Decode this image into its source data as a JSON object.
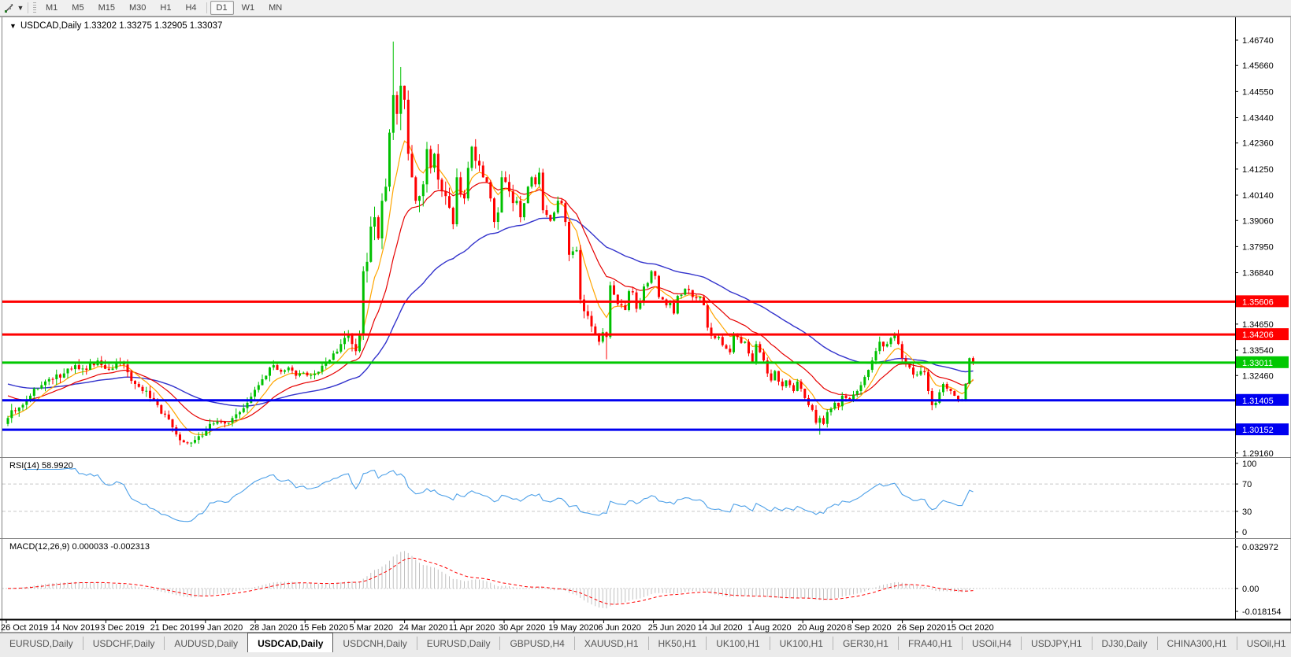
{
  "toolbar": {
    "tool_icon": "crosshair-cursor",
    "dropdown_icon": "chevron-down",
    "timeframes": [
      "M1",
      "M5",
      "M15",
      "M30",
      "H1",
      "H4",
      "D1",
      "W1",
      "MN"
    ],
    "active_timeframe": "D1"
  },
  "chart": {
    "title": "USDCAD,Daily",
    "quote": {
      "open": "1.33202",
      "high": "1.33275",
      "low": "1.32905",
      "close": "1.33037"
    }
  },
  "indicators": {
    "rsi": {
      "label": "RSI(14)",
      "value": "58.9920",
      "levels": [
        70,
        30
      ],
      "axis_labels": [
        "100",
        "70",
        "30",
        "0"
      ],
      "axis_values": [
        100,
        70,
        30,
        0
      ],
      "line_color": "#4da0e8"
    },
    "macd": {
      "label": "MACD(12,26,9)",
      "value": "0.000033 -0.002313",
      "axis_labels": [
        "0.032972",
        "0.00",
        "-0.018154"
      ],
      "axis_values": [
        0.032972,
        0,
        -0.018154
      ],
      "hist_color": "#c0c0c0",
      "signal_color": "#ff0000"
    }
  },
  "price_axis": {
    "ticks": [
      "1.46740",
      "1.45660",
      "1.44550",
      "1.43440",
      "1.42360",
      "1.41250",
      "1.40140",
      "1.39060",
      "1.37950",
      "1.36840",
      "1.34650",
      "1.33540",
      "1.32460",
      "1.29160"
    ]
  },
  "time_axis": {
    "dates": [
      "26 Oct 2019",
      "14 Nov 2019",
      "3 Dec 2019",
      "21 Dec 2019",
      "9 Jan 2020",
      "28 Jan 2020",
      "15 Feb 2020",
      "5 Mar 2020",
      "24 Mar 2020",
      "11 Apr 2020",
      "30 Apr 2020",
      "19 May 2020",
      "6 Jun 2020",
      "25 Jun 2020",
      "14 Jul 2020",
      "1 Aug 2020",
      "20 Aug 2020",
      "8 Sep 2020",
      "26 Sep 2020",
      "15 Oct 2020"
    ]
  },
  "tabs": {
    "items": [
      "EURUSD,Daily",
      "USDCHF,Daily",
      "AUDUSD,Daily",
      "USDCAD,Daily",
      "USDCNH,Daily",
      "EURUSD,Daily",
      "GBPUSD,H4",
      "XAUUSD,H1",
      "HK50,H1",
      "UK100,H1",
      "UK100,H1",
      "GER30,H1",
      "FRA40,H1",
      "USOil,H4",
      "USDJPY,H1",
      "DJ30,Daily",
      "CHINA300,H1",
      "USOil,H1"
    ],
    "active_index": 3,
    "scroll_left": "◂",
    "scroll_right": "▸"
  },
  "chart_data": {
    "type": "candlestick",
    "symbol": "USDCAD",
    "timeframe": "Daily",
    "x_range": [
      "26 Oct 2019",
      "late Oct 2020"
    ],
    "y_range": [
      1.28985,
      1.47711
    ],
    "grid": false,
    "current_bar_ohlc": {
      "open": 1.33202,
      "high": 1.33275,
      "low": 1.32905,
      "close": 1.33037
    },
    "horizontal_lines": [
      {
        "price": 1.35606,
        "color": "#ff0000",
        "width": 3
      },
      {
        "price": 1.34206,
        "color": "#ff0000",
        "width": 3
      },
      {
        "price": 1.33011,
        "color": "#00c800",
        "width": 3
      },
      {
        "price": 1.31405,
        "color": "#0000f0",
        "width": 3
      },
      {
        "price": 1.30152,
        "color": "#0000f0",
        "width": 3
      }
    ],
    "moving_averages": [
      {
        "period": 8,
        "color": "#ffa500"
      },
      {
        "period": 20,
        "color": "#e60000"
      },
      {
        "period": 55,
        "color": "#3333cc"
      }
    ],
    "up_color": "#00c000",
    "down_color": "#ff0000",
    "note": "close path anchors read off the chart: [bar_index, close, volatility_pips_x10]; 259 daily bars from 26 Oct 2019",
    "close_anchors": [
      [
        0,
        1.3065,
        4
      ],
      [
        3,
        1.311,
        3
      ],
      [
        6,
        1.316,
        3
      ],
      [
        9,
        1.3205,
        3
      ],
      [
        12,
        1.323,
        3
      ],
      [
        15,
        1.3255,
        3
      ],
      [
        18,
        1.329,
        3
      ],
      [
        21,
        1.327,
        3
      ],
      [
        24,
        1.331,
        3
      ],
      [
        27,
        1.327,
        3
      ],
      [
        30,
        1.33,
        3
      ],
      [
        32,
        1.326,
        3
      ],
      [
        34,
        1.321,
        3
      ],
      [
        36,
        1.318,
        3
      ],
      [
        38,
        1.315,
        3
      ],
      [
        40,
        1.312,
        3
      ],
      [
        42,
        1.308,
        3
      ],
      [
        45,
        1.2995,
        3
      ],
      [
        48,
        1.2958,
        2
      ],
      [
        50,
        1.2972,
        2
      ],
      [
        52,
        1.299,
        2
      ],
      [
        54,
        1.304,
        3
      ],
      [
        56,
        1.305,
        2
      ],
      [
        58,
        1.3042,
        2
      ],
      [
        60,
        1.3065,
        3
      ],
      [
        62,
        1.309,
        3
      ],
      [
        64,
        1.313,
        3
      ],
      [
        66,
        1.3185,
        3
      ],
      [
        68,
        1.323,
        3
      ],
      [
        70,
        1.328,
        3
      ],
      [
        71,
        1.329,
        2
      ],
      [
        73,
        1.3262,
        2
      ],
      [
        75,
        1.328,
        2
      ],
      [
        77,
        1.3245,
        2
      ],
      [
        79,
        1.3258,
        2
      ],
      [
        81,
        1.3248,
        2
      ],
      [
        83,
        1.3262,
        2
      ],
      [
        85,
        1.3305,
        2
      ],
      [
        87,
        1.334,
        2
      ],
      [
        89,
        1.338,
        3
      ],
      [
        91,
        1.342,
        4
      ],
      [
        92,
        1.338,
        4
      ],
      [
        93,
        1.335,
        5
      ],
      [
        94,
        1.342,
        6
      ],
      [
        95,
        1.369,
        8
      ],
      [
        96,
        1.373,
        8
      ],
      [
        97,
        1.388,
        9
      ],
      [
        98,
        1.392,
        9
      ],
      [
        99,
        1.383,
        9
      ],
      [
        100,
        1.399,
        9
      ],
      [
        101,
        1.405,
        9
      ],
      [
        102,
        1.428,
        10
      ],
      [
        103,
        1.444,
        11
      ],
      [
        104,
        1.436,
        10
      ],
      [
        105,
        1.448,
        9
      ],
      [
        106,
        1.442,
        8
      ],
      [
        107,
        1.419,
        8
      ],
      [
        108,
        1.409,
        7
      ],
      [
        109,
        1.399,
        7
      ],
      [
        110,
        1.401,
        6
      ],
      [
        111,
        1.406,
        6
      ],
      [
        112,
        1.421,
        6
      ],
      [
        113,
        1.413,
        6
      ],
      [
        114,
        1.419,
        5
      ],
      [
        115,
        1.408,
        5
      ],
      [
        116,
        1.403,
        5
      ],
      [
        117,
        1.401,
        5
      ],
      [
        118,
        1.396,
        5
      ],
      [
        119,
        1.389,
        5
      ],
      [
        120,
        1.409,
        5
      ],
      [
        121,
        1.402,
        5
      ],
      [
        122,
        1.4,
        4
      ],
      [
        123,
        1.413,
        4
      ],
      [
        124,
        1.422,
        4
      ],
      [
        125,
        1.416,
        4
      ],
      [
        126,
        1.414,
        4
      ],
      [
        127,
        1.409,
        4
      ],
      [
        128,
        1.407,
        4
      ],
      [
        129,
        1.4,
        4
      ],
      [
        130,
        1.39,
        4
      ],
      [
        131,
        1.394,
        4
      ],
      [
        132,
        1.409,
        4
      ],
      [
        133,
        1.407,
        4
      ],
      [
        134,
        1.403,
        4
      ],
      [
        135,
        1.398,
        4
      ],
      [
        136,
        1.399,
        4
      ],
      [
        137,
        1.392,
        4
      ],
      [
        138,
        1.398,
        4
      ],
      [
        139,
        1.405,
        4
      ],
      [
        140,
        1.409,
        4
      ],
      [
        141,
        1.406,
        4
      ],
      [
        142,
        1.411,
        4
      ],
      [
        143,
        1.395,
        4
      ],
      [
        144,
        1.393,
        3
      ],
      [
        145,
        1.3905,
        3
      ],
      [
        146,
        1.394,
        3
      ],
      [
        147,
        1.399,
        3
      ],
      [
        148,
        1.398,
        3
      ],
      [
        149,
        1.39,
        3
      ],
      [
        150,
        1.376,
        4
      ],
      [
        151,
        1.3775,
        3
      ],
      [
        152,
        1.378,
        3
      ],
      [
        153,
        1.357,
        4
      ],
      [
        154,
        1.352,
        3
      ],
      [
        155,
        1.35,
        3
      ],
      [
        156,
        1.3455,
        3
      ],
      [
        157,
        1.342,
        3
      ],
      [
        158,
        1.339,
        3
      ],
      [
        159,
        1.343,
        3
      ],
      [
        160,
        1.341,
        4
      ],
      [
        161,
        1.363,
        4
      ],
      [
        162,
        1.359,
        3
      ],
      [
        163,
        1.355,
        3
      ],
      [
        164,
        1.3545,
        2
      ],
      [
        165,
        1.3525,
        2
      ],
      [
        166,
        1.3605,
        3
      ],
      [
        167,
        1.36,
        2
      ],
      [
        168,
        1.353,
        2
      ],
      [
        169,
        1.356,
        2
      ],
      [
        170,
        1.3625,
        2
      ],
      [
        171,
        1.364,
        2
      ],
      [
        172,
        1.369,
        3
      ],
      [
        173,
        1.367,
        2
      ],
      [
        174,
        1.358,
        2
      ],
      [
        175,
        1.357,
        2
      ],
      [
        176,
        1.3545,
        2
      ],
      [
        177,
        1.3555,
        2
      ],
      [
        178,
        1.351,
        2
      ],
      [
        179,
        1.3585,
        2
      ],
      [
        180,
        1.359,
        2
      ],
      [
        181,
        1.3615,
        2
      ],
      [
        182,
        1.361,
        2
      ],
      [
        183,
        1.358,
        2
      ],
      [
        184,
        1.3575,
        2
      ],
      [
        185,
        1.358,
        2
      ],
      [
        186,
        1.3545,
        2
      ],
      [
        187,
        1.345,
        3
      ],
      [
        188,
        1.3415,
        2
      ],
      [
        189,
        1.3405,
        2
      ],
      [
        190,
        1.341,
        2
      ],
      [
        191,
        1.3375,
        2
      ],
      [
        192,
        1.336,
        2
      ],
      [
        193,
        1.3345,
        2
      ],
      [
        194,
        1.3425,
        2
      ],
      [
        195,
        1.341,
        2
      ],
      [
        196,
        1.3385,
        2
      ],
      [
        197,
        1.339,
        2
      ],
      [
        198,
        1.334,
        2
      ],
      [
        199,
        1.33,
        2
      ],
      [
        200,
        1.338,
        2
      ],
      [
        201,
        1.3345,
        2
      ],
      [
        202,
        1.331,
        2
      ],
      [
        203,
        1.3255,
        2
      ],
      [
        204,
        1.3225,
        2
      ],
      [
        205,
        1.3265,
        2
      ],
      [
        206,
        1.322,
        2
      ],
      [
        207,
        1.32,
        2
      ],
      [
        208,
        1.3225,
        2
      ],
      [
        209,
        1.3205,
        2
      ],
      [
        210,
        1.318,
        2
      ],
      [
        211,
        1.322,
        2
      ],
      [
        212,
        1.319,
        2
      ],
      [
        213,
        1.315,
        2
      ],
      [
        214,
        1.312,
        2
      ],
      [
        215,
        1.31,
        2
      ],
      [
        216,
        1.3045,
        3
      ],
      [
        217,
        1.3065,
        3
      ],
      [
        218,
        1.304,
        2
      ],
      [
        219,
        1.309,
        2
      ],
      [
        220,
        1.3105,
        2
      ],
      [
        221,
        1.313,
        2
      ],
      [
        222,
        1.3115,
        2
      ],
      [
        223,
        1.316,
        2
      ],
      [
        224,
        1.315,
        2
      ],
      [
        225,
        1.3145,
        2
      ],
      [
        226,
        1.3165,
        2
      ],
      [
        227,
        1.318,
        2
      ],
      [
        228,
        1.3205,
        2
      ],
      [
        229,
        1.324,
        2
      ],
      [
        230,
        1.327,
        2
      ],
      [
        231,
        1.331,
        3
      ],
      [
        232,
        1.335,
        3
      ],
      [
        233,
        1.339,
        3
      ],
      [
        234,
        1.337,
        2
      ],
      [
        235,
        1.338,
        2
      ],
      [
        236,
        1.3405,
        2
      ],
      [
        237,
        1.342,
        2
      ],
      [
        238,
        1.338,
        3
      ],
      [
        239,
        1.332,
        3
      ],
      [
        240,
        1.33,
        2
      ],
      [
        241,
        1.328,
        2
      ],
      [
        242,
        1.325,
        2
      ],
      [
        243,
        1.325,
        2
      ],
      [
        244,
        1.3265,
        2
      ],
      [
        245,
        1.326,
        2
      ],
      [
        246,
        1.318,
        3
      ],
      [
        247,
        1.312,
        2
      ],
      [
        248,
        1.313,
        2
      ],
      [
        249,
        1.3175,
        2
      ],
      [
        250,
        1.321,
        2
      ],
      [
        251,
        1.319,
        2
      ],
      [
        252,
        1.318,
        2
      ],
      [
        253,
        1.316,
        2
      ],
      [
        254,
        1.314,
        2
      ],
      [
        255,
        1.314,
        1
      ],
      [
        256,
        1.3211,
        1
      ],
      [
        257,
        1.332,
        0.5
      ],
      [
        258,
        1.33037,
        0
      ]
    ],
    "wick_high_overrides": {
      "103": 1.4668,
      "105": 1.456
    },
    "wick_low_overrides": {
      "48": 1.2952,
      "160": 1.3315,
      "217": 1.2994
    }
  }
}
